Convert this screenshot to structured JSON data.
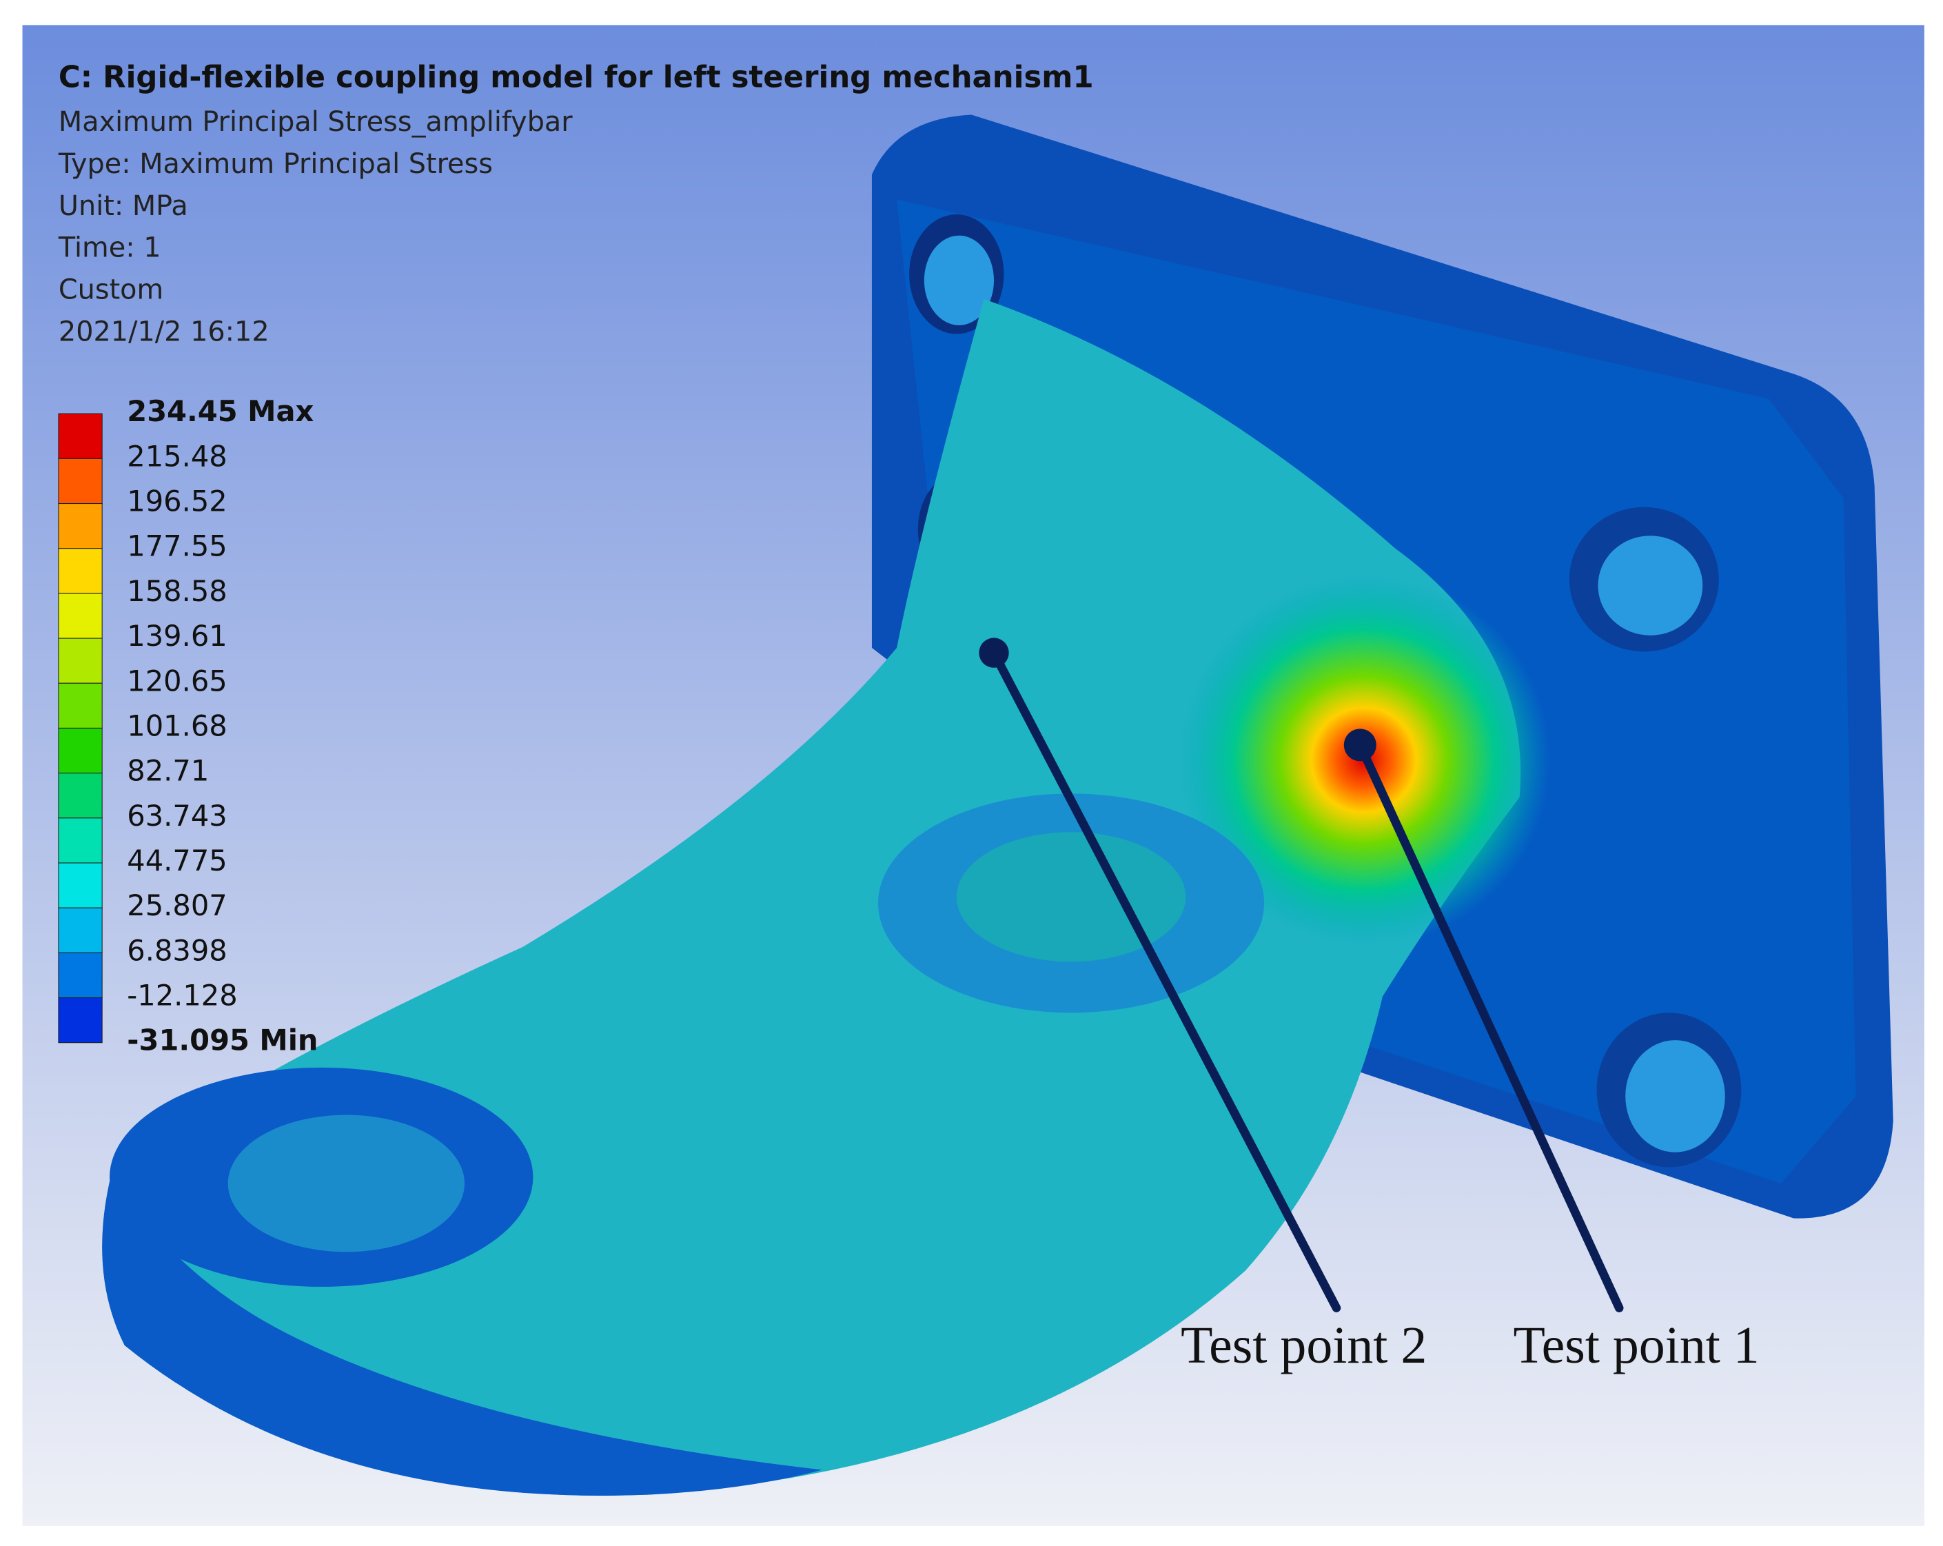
{
  "header": {
    "title": "C: Rigid-flexible coupling model for left steering mechanism1",
    "lines": [
      "Maximum Principal Stress_amplifybar",
      "Type: Maximum Principal Stress",
      "Unit: MPa",
      "Time: 1",
      "Custom",
      "2021/1/2 16:12"
    ]
  },
  "legend": {
    "entries": [
      {
        "label": "234.45 Max",
        "color": "#e00000"
      },
      {
        "label": "215.48",
        "color": "#ff5a00"
      },
      {
        "label": "196.52",
        "color": "#ffa000"
      },
      {
        "label": "177.55",
        "color": "#ffd800"
      },
      {
        "label": "158.58",
        "color": "#e4f000"
      },
      {
        "label": "139.61",
        "color": "#b0e800"
      },
      {
        "label": "120.65",
        "color": "#6ee000"
      },
      {
        "label": "101.68",
        "color": "#20d400"
      },
      {
        "label": "82.71",
        "color": "#00d46a"
      },
      {
        "label": "63.743",
        "color": "#00e0b0"
      },
      {
        "label": "44.775",
        "color": "#00e4e4"
      },
      {
        "label": "25.807",
        "color": "#00b8ec"
      },
      {
        "label": "6.8398",
        "color": "#0078e4"
      },
      {
        "label": "-12.128",
        "color": "#0030e0"
      },
      {
        "label": "-31.095 Min"
      }
    ]
  },
  "annotations": [
    "Test point 2",
    "Test point 1"
  ]
}
